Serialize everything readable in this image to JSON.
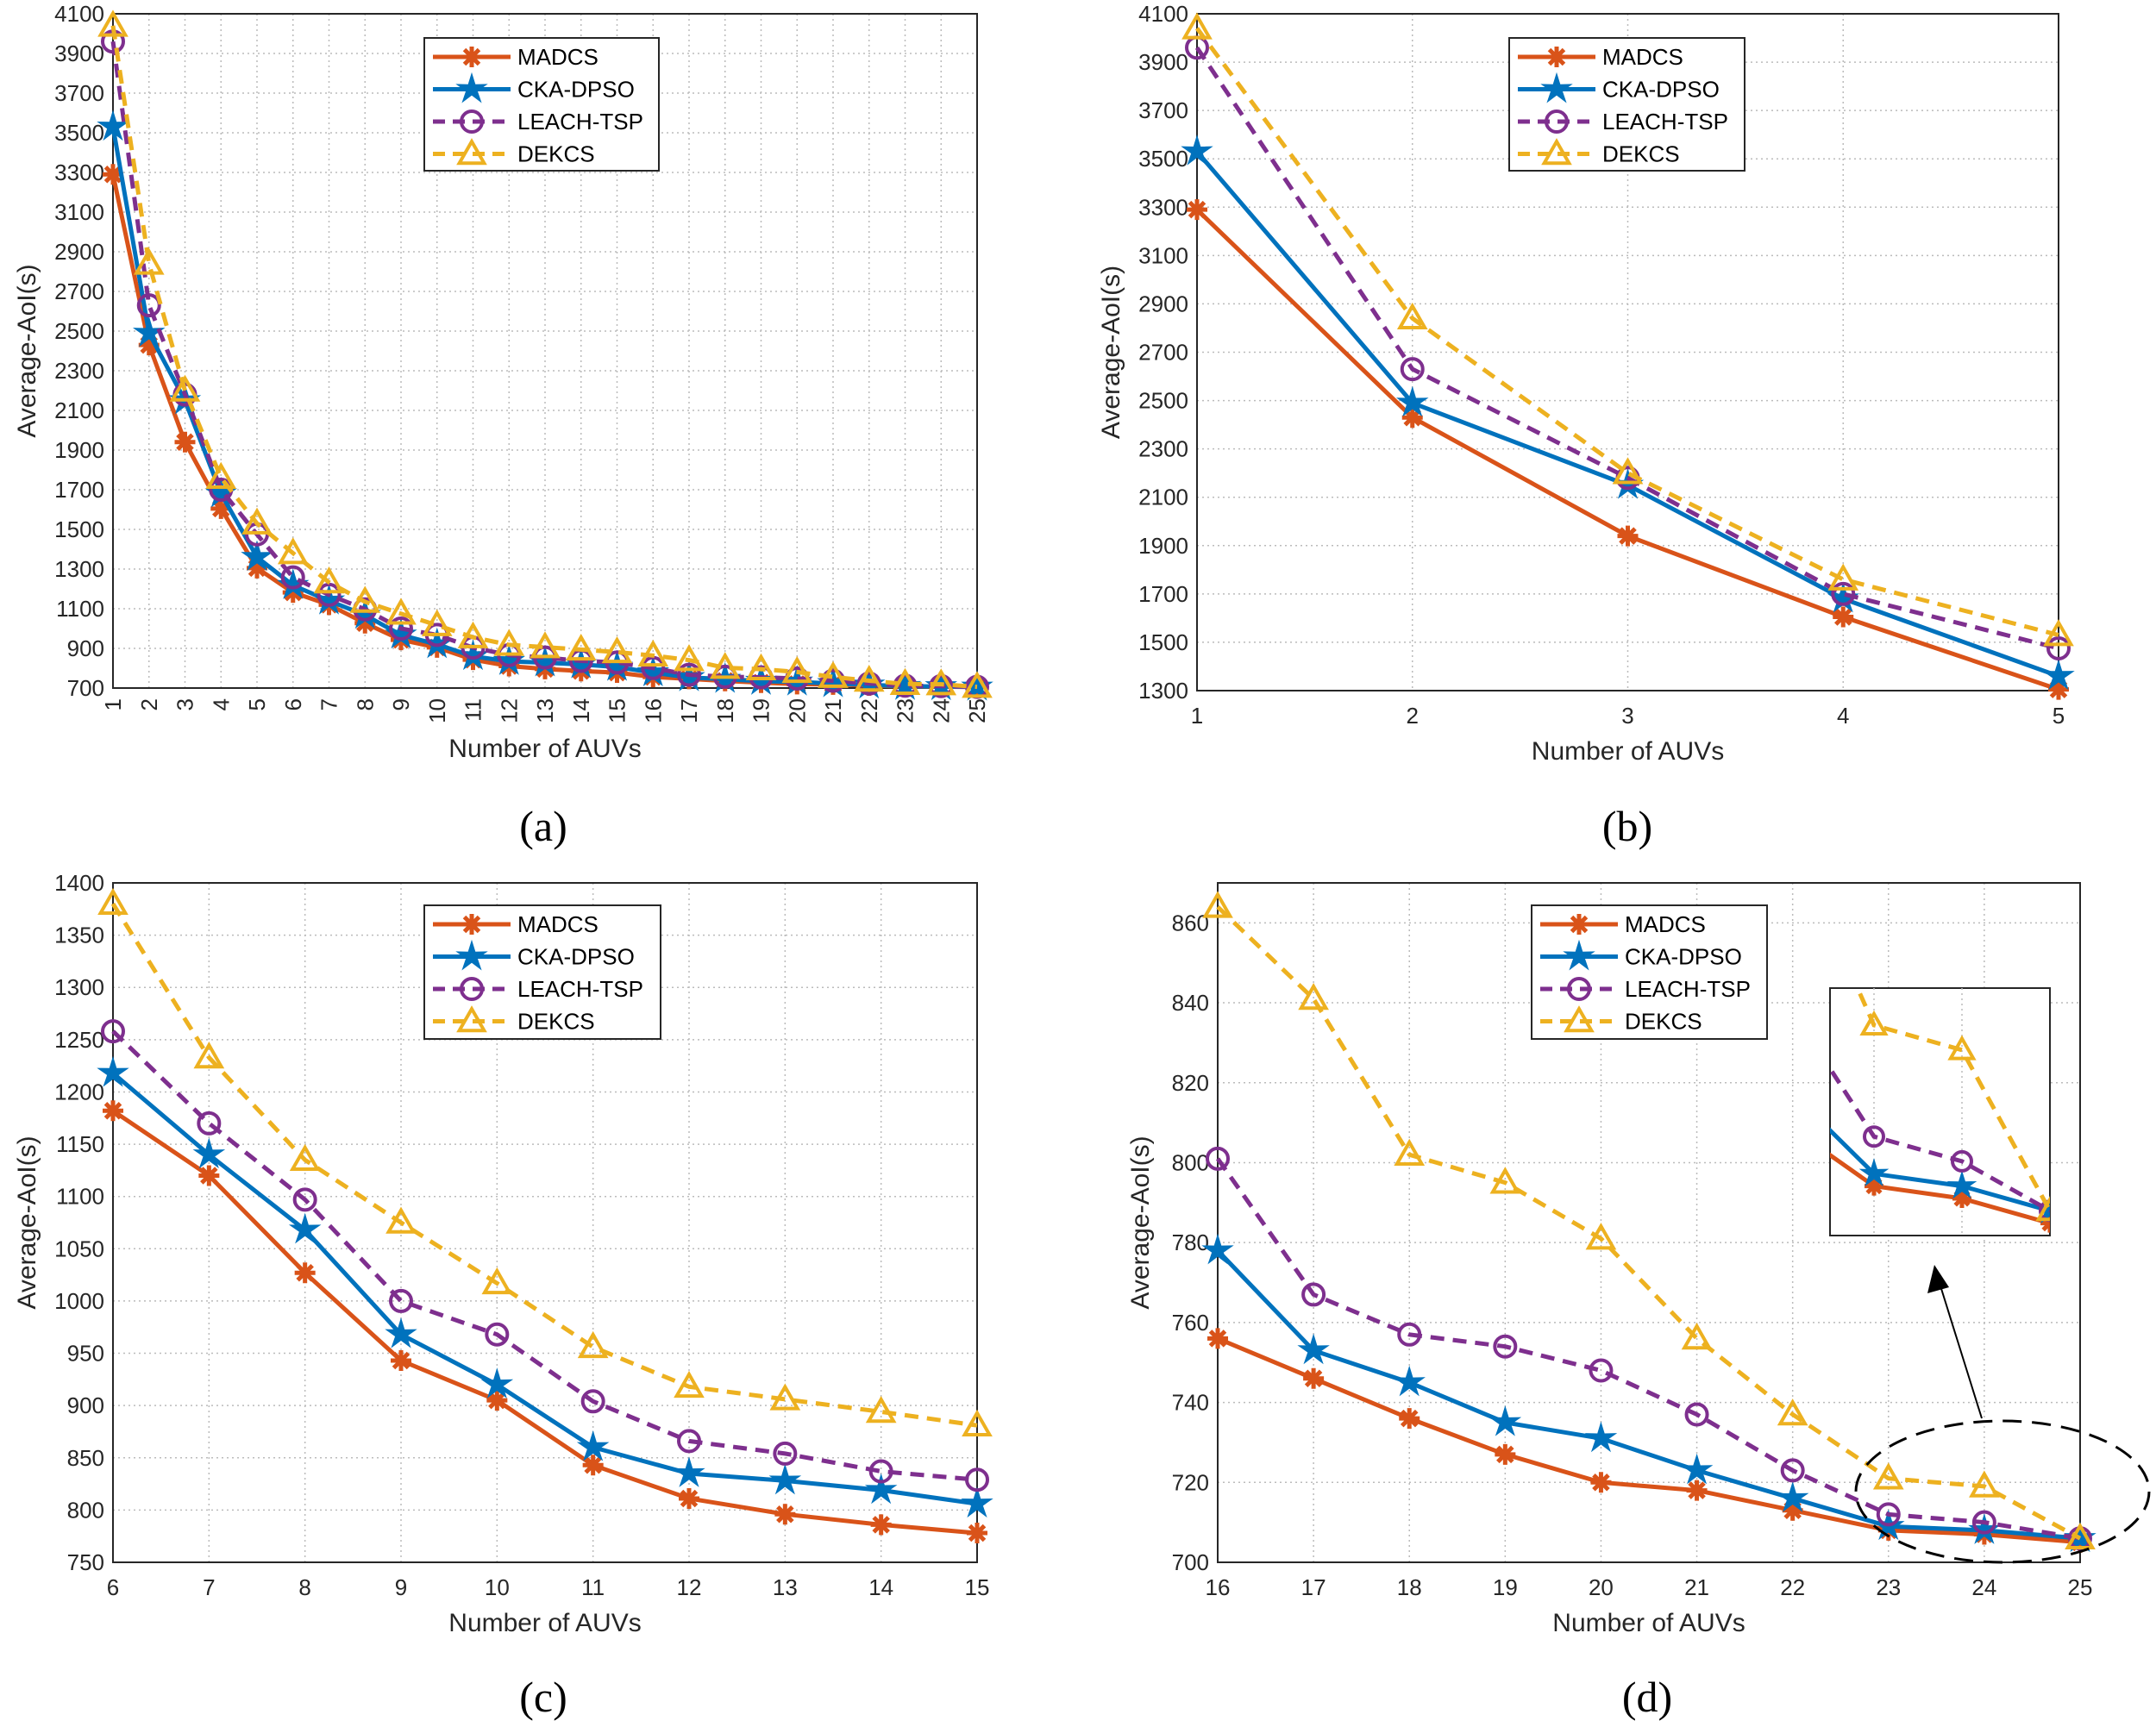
{
  "colors": {
    "MADCS": "#D95319",
    "CKA-DPSO": "#0072BD",
    "LEACH-TSP": "#7E2F8E",
    "DEKCS": "#EDB120"
  },
  "chart_data": [
    {
      "type": "line",
      "caption": "(a)",
      "xlabel": "Number of AUVs",
      "ylabel": "Average-AoI(s)",
      "xlim": [
        1,
        25
      ],
      "ylim": [
        700,
        4100
      ],
      "grid": true,
      "legend": "top-center",
      "xticks": [
        1,
        2,
        3,
        4,
        5,
        6,
        7,
        8,
        9,
        10,
        11,
        12,
        13,
        14,
        15,
        16,
        17,
        18,
        19,
        20,
        21,
        22,
        23,
        24,
        25
      ],
      "yticks": [
        700,
        900,
        1100,
        1300,
        1500,
        1700,
        1900,
        2100,
        2300,
        2500,
        2700,
        2900,
        3100,
        3300,
        3500,
        3700,
        3900,
        4100
      ],
      "x": [
        1,
        2,
        3,
        4,
        5,
        6,
        7,
        8,
        9,
        10,
        11,
        12,
        13,
        14,
        15,
        16,
        17,
        18,
        19,
        20,
        21,
        22,
        23,
        24,
        25
      ],
      "series": [
        {
          "name": "MADCS",
          "marker": "asterisk",
          "style": "solid",
          "values": [
            3290,
            2430,
            1940,
            1605,
            1305,
            1182,
            1120,
            1027,
            943,
            905,
            843,
            811,
            796,
            786,
            778,
            756,
            746,
            736,
            727,
            720,
            718,
            713,
            708,
            707,
            705
          ]
        },
        {
          "name": "CKA-DPSO",
          "marker": "star",
          "style": "solid",
          "values": [
            3530,
            2490,
            2150,
            1680,
            1360,
            1218,
            1140,
            1068,
            968,
            920,
            860,
            835,
            828,
            819,
            806,
            778,
            753,
            745,
            735,
            731,
            723,
            716,
            709,
            708,
            706
          ]
        },
        {
          "name": "LEACH-TSP",
          "marker": "circle",
          "style": "dashed",
          "values": [
            3960,
            2630,
            2180,
            1700,
            1475,
            1258,
            1170,
            1097,
            1000,
            968,
            904,
            866,
            854,
            837,
            829,
            801,
            767,
            757,
            754,
            748,
            737,
            723,
            712,
            710,
            706
          ]
        },
        {
          "name": "DEKCS",
          "marker": "triangle",
          "style": "dashed",
          "values": [
            4040,
            2840,
            2200,
            1760,
            1530,
            1380,
            1233,
            1135,
            1075,
            1017,
            956,
            918,
            906,
            894,
            881,
            864,
            841,
            802,
            795,
            781,
            756,
            737,
            721,
            719,
            706
          ]
        }
      ]
    },
    {
      "type": "line",
      "caption": "(b)",
      "xlabel": "Number of AUVs",
      "ylabel": "Average-AoI(s)",
      "xlim": [
        1,
        5
      ],
      "ylim": [
        1300,
        4100
      ],
      "grid": true,
      "legend": "top-center",
      "xticks": [
        1,
        2,
        3,
        4,
        5
      ],
      "yticks": [
        1300,
        1500,
        1700,
        1900,
        2100,
        2300,
        2500,
        2700,
        2900,
        3100,
        3300,
        3500,
        3700,
        3900,
        4100
      ],
      "x": [
        1,
        2,
        3,
        4,
        5
      ],
      "series": [
        {
          "name": "MADCS",
          "marker": "asterisk",
          "style": "solid",
          "values": [
            3290,
            2430,
            1940,
            1605,
            1305
          ]
        },
        {
          "name": "CKA-DPSO",
          "marker": "star",
          "style": "solid",
          "values": [
            3530,
            2490,
            2150,
            1680,
            1360
          ]
        },
        {
          "name": "LEACH-TSP",
          "marker": "circle",
          "style": "dashed",
          "values": [
            3960,
            2630,
            2180,
            1700,
            1475
          ]
        },
        {
          "name": "DEKCS",
          "marker": "triangle",
          "style": "dashed",
          "values": [
            4040,
            2840,
            2200,
            1760,
            1530
          ]
        }
      ]
    },
    {
      "type": "line",
      "caption": "(c)",
      "xlabel": "Number of AUVs",
      "ylabel": "Average-AoI(s)",
      "xlim": [
        6,
        15
      ],
      "ylim": [
        750,
        1400
      ],
      "grid": true,
      "legend": "top-center",
      "xticks": [
        6,
        7,
        8,
        9,
        10,
        11,
        12,
        13,
        14,
        15
      ],
      "yticks": [
        750,
        800,
        850,
        900,
        950,
        1000,
        1050,
        1100,
        1150,
        1200,
        1250,
        1300,
        1350,
        1400
      ],
      "x": [
        6,
        7,
        8,
        9,
        10,
        11,
        12,
        13,
        14,
        15
      ],
      "series": [
        {
          "name": "MADCS",
          "marker": "asterisk",
          "style": "solid",
          "values": [
            1182,
            1120,
            1027,
            943,
            905,
            843,
            811,
            796,
            786,
            778
          ]
        },
        {
          "name": "CKA-DPSO",
          "marker": "star",
          "style": "solid",
          "values": [
            1218,
            1140,
            1068,
            968,
            920,
            860,
            835,
            828,
            819,
            806
          ]
        },
        {
          "name": "LEACH-TSP",
          "marker": "circle",
          "style": "dashed",
          "values": [
            1258,
            1170,
            1097,
            1000,
            968,
            904,
            866,
            854,
            837,
            829
          ]
        },
        {
          "name": "DEKCS",
          "marker": "triangle",
          "style": "dashed",
          "values": [
            1380,
            1233,
            1135,
            1075,
            1017,
            956,
            918,
            906,
            894,
            881
          ]
        }
      ]
    },
    {
      "type": "line",
      "caption": "(d)",
      "xlabel": "Number of AUVs",
      "ylabel": "Average-AoI(s)",
      "xlim": [
        16,
        25
      ],
      "ylim": [
        700,
        870
      ],
      "grid": true,
      "legend": "top-center",
      "xticks": [
        16,
        17,
        18,
        19,
        20,
        21,
        22,
        23,
        24,
        25
      ],
      "yticks": [
        700,
        720,
        740,
        760,
        780,
        800,
        820,
        840,
        860
      ],
      "x": [
        16,
        17,
        18,
        19,
        20,
        21,
        22,
        23,
        24,
        25
      ],
      "inset": {
        "xlim": [
          22.5,
          25
        ],
        "ylim": [
          704,
          724
        ]
      },
      "series": [
        {
          "name": "MADCS",
          "marker": "asterisk",
          "style": "solid",
          "values": [
            756,
            746,
            736,
            727,
            720,
            718,
            713,
            708,
            707,
            705
          ]
        },
        {
          "name": "CKA-DPSO",
          "marker": "star",
          "style": "solid",
          "values": [
            778,
            753,
            745,
            735,
            731,
            723,
            716,
            709,
            708,
            706
          ]
        },
        {
          "name": "LEACH-TSP",
          "marker": "circle",
          "style": "dashed",
          "values": [
            801,
            767,
            757,
            754,
            748,
            737,
            723,
            712,
            710,
            706
          ]
        },
        {
          "name": "DEKCS",
          "marker": "triangle",
          "style": "dashed",
          "values": [
            864,
            841,
            802,
            795,
            781,
            756,
            737,
            721,
            719,
            706
          ]
        }
      ]
    }
  ]
}
